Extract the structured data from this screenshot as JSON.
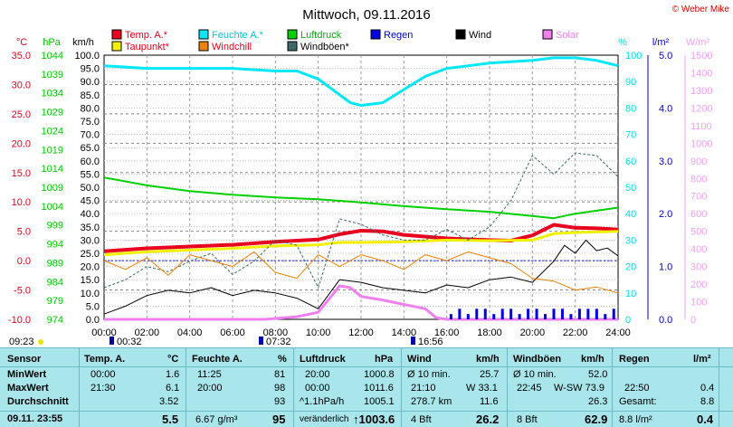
{
  "chart_data": {
    "type": "line",
    "title": "Mittwoch, 09.11.2016",
    "xlabel": "",
    "x_ticks": [
      "00:00",
      "02:00",
      "04:00",
      "06:00",
      "08:00",
      "10:00",
      "12:00",
      "14:00",
      "16:00",
      "18:00",
      "20:00",
      "22:00",
      "24:00"
    ],
    "axes": {
      "temp": {
        "unit": "°C",
        "min": -10,
        "max": 35,
        "ticks": [
          "35.0",
          "30.0",
          "25.0",
          "20.0",
          "15.0",
          "10.0",
          "5.0",
          "0.0",
          "-5.0",
          "-10.0"
        ],
        "color": "#e8001e"
      },
      "pressure": {
        "unit": "hPa",
        "min": 974,
        "max": 1044,
        "ticks": [
          "1044",
          "1039",
          "1034",
          "1029",
          "1024",
          "1019",
          "1014",
          "1009",
          "1004",
          "999",
          "994",
          "989",
          "984",
          "979",
          "974"
        ],
        "color": "#00c800"
      },
      "wind": {
        "unit": "km/h",
        "min": 0,
        "max": 100,
        "ticks": [
          "100.0",
          "95.0",
          "90.0",
          "85.0",
          "80.0",
          "75.0",
          "70.0",
          "65.0",
          "60.0",
          "55.0",
          "50.0",
          "45.0",
          "40.0",
          "35.0",
          "30.0",
          "25.0",
          "20.0",
          "15.0",
          "10.0",
          "5.0",
          "0.0"
        ],
        "color": "#000000"
      },
      "humidity": {
        "unit": "%",
        "min": 0,
        "max": 100,
        "ticks": [
          "100",
          "90",
          "80",
          "70",
          "60",
          "50",
          "40",
          "30",
          "20",
          "10",
          "0"
        ],
        "color": "#00e0f0"
      },
      "rain": {
        "unit": "l/m²",
        "min": 0,
        "max": 5,
        "ticks": [
          "5.0",
          "4.0",
          "3.0",
          "2.0",
          "1.0",
          "0.0"
        ],
        "color": "#0000d0"
      },
      "solar": {
        "unit": "W/m²",
        "min": 0,
        "max": 1500,
        "ticks": [
          "1500",
          "1400",
          "1300",
          "1200",
          "1100",
          "1000",
          "900",
          "800",
          "700",
          "600",
          "500",
          "400",
          "300",
          "200",
          "100",
          "0"
        ],
        "color": "#f0a0f0"
      }
    },
    "legend": [
      {
        "name": "Temp. A.*",
        "color": "#e8001e"
      },
      {
        "name": "Feuchte A.*",
        "color": "#00e8f8"
      },
      {
        "name": "Luftdruck",
        "color": "#00d000"
      },
      {
        "name": "Regen",
        "color": "#0000e0"
      },
      {
        "name": "Wind",
        "color": "#000000"
      },
      {
        "name": "Solar",
        "color": "#f080f0"
      },
      {
        "name": "Taupunkt*",
        "color": "#f0f000"
      },
      {
        "name": "Windchill",
        "color": "#f08000"
      },
      {
        "name": "Windböen*",
        "color": "#3c6a6a"
      }
    ],
    "series": [
      {
        "name": "Temp. A.*",
        "axis": "temp",
        "x": [
          0,
          2,
          4,
          6,
          8,
          10,
          11,
          12,
          13,
          14,
          16,
          18,
          19,
          20,
          21,
          22,
          23,
          24
        ],
        "y": [
          1.6,
          2.1,
          2.4,
          2.7,
          3.2,
          3.6,
          4.5,
          5.1,
          5.0,
          4.4,
          3.8,
          3.5,
          3.4,
          4.3,
          6.1,
          5.6,
          5.5,
          5.3
        ]
      },
      {
        "name": "Taupunkt*",
        "axis": "temp",
        "x": [
          0,
          2,
          4,
          6,
          8,
          10,
          11,
          12,
          14,
          16,
          18,
          20,
          21,
          22,
          24
        ],
        "y": [
          1.0,
          1.5,
          1.8,
          2.1,
          2.5,
          2.7,
          3.1,
          3.1,
          3.2,
          3.5,
          3.4,
          3.5,
          4.6,
          4.8,
          5.0
        ]
      },
      {
        "name": "Feuchte A.*",
        "axis": "humidity",
        "x": [
          0,
          2,
          4,
          6,
          8,
          9,
          10,
          11,
          11.5,
          12,
          13,
          14,
          15,
          16,
          18,
          20,
          21,
          22,
          23,
          24
        ],
        "y": [
          96,
          95,
          95,
          95,
          94,
          94,
          91,
          85,
          82,
          81,
          82,
          87,
          92,
          95,
          97,
          98,
          99,
          99,
          98,
          96
        ]
      },
      {
        "name": "Luftdruck",
        "axis": "pressure",
        "x": [
          0,
          2,
          4,
          6,
          8,
          10,
          12,
          14,
          16,
          18,
          20,
          21,
          22,
          23,
          24
        ],
        "y": [
          1011.6,
          1009.5,
          1008.0,
          1007.0,
          1006.3,
          1005.8,
          1005.0,
          1004.0,
          1003.2,
          1002.5,
          1001.4,
          1000.8,
          1002.0,
          1002.8,
          1003.6
        ]
      },
      {
        "name": "Wind",
        "axis": "wind",
        "x": [
          0,
          1,
          2,
          3,
          4,
          5,
          6,
          7,
          8,
          9,
          10,
          11,
          12,
          13,
          14,
          15,
          16,
          17,
          18,
          19,
          20,
          21,
          21.5,
          22,
          22.5,
          23,
          23.5,
          24
        ],
        "y": [
          2,
          5,
          9,
          11,
          10,
          12,
          9,
          11,
          10,
          8,
          4,
          15,
          14,
          12,
          11,
          10,
          13,
          12,
          15,
          16,
          14,
          22,
          28,
          25,
          30,
          26,
          27,
          24
        ]
      },
      {
        "name": "Windböen*",
        "axis": "wind",
        "x": [
          0,
          1,
          2,
          3,
          4,
          5,
          6,
          7,
          8,
          9,
          10,
          11,
          12,
          13,
          14,
          15,
          16,
          17,
          18,
          19,
          20,
          21,
          22,
          23,
          24
        ],
        "y": [
          12,
          15,
          20,
          18,
          22,
          25,
          17,
          22,
          30,
          28,
          12,
          38,
          36,
          32,
          30,
          30,
          34,
          30,
          35,
          45,
          62,
          55,
          63,
          62,
          54
        ]
      },
      {
        "name": "Windchill",
        "axis": "temp",
        "x": [
          0,
          1,
          2,
          3,
          4,
          5,
          6,
          7,
          8,
          9,
          10,
          11,
          12,
          13,
          14,
          15,
          16,
          17,
          18,
          19,
          20,
          21,
          22,
          23,
          24
        ],
        "y": [
          0,
          -1.5,
          0.5,
          -2.5,
          1,
          0,
          -1,
          1.5,
          -2,
          -3,
          1,
          -1,
          1,
          0,
          -1.5,
          1,
          0,
          1.5,
          0.5,
          -0.5,
          -3,
          -3.5,
          -5,
          -4.5,
          -5.5
        ]
      },
      {
        "name": "Solar",
        "axis": "solar",
        "x": [
          0,
          7.5,
          8,
          9,
          10,
          11,
          11.5,
          12,
          13,
          14,
          15,
          15.5,
          16,
          24
        ],
        "y": [
          0,
          0,
          5,
          15,
          40,
          190,
          180,
          130,
          110,
          85,
          60,
          10,
          0,
          0
        ]
      },
      {
        "name": "Regen",
        "axis": "rain",
        "type": "bar",
        "x": [
          16.2,
          16.6,
          17,
          17.4,
          17.8,
          18.2,
          18.6,
          19,
          19.4,
          19.8,
          20.2,
          20.6,
          21,
          21.4,
          21.8,
          22.2,
          22.6,
          23,
          23.4,
          23.8
        ],
        "y": [
          0.1,
          0.2,
          0.1,
          0.2,
          0.2,
          0.1,
          0.2,
          0.2,
          0.1,
          0.2,
          0.2,
          0.1,
          0.2,
          0.2,
          0.1,
          0.2,
          0.2,
          0.2,
          0.1,
          0.2
        ]
      }
    ],
    "grid": true,
    "footer_left": "09:23",
    "sun_markers": [
      "00:32",
      "07:32",
      "16:56"
    ]
  },
  "brand": "© Weber Mike",
  "table": {
    "rows": [
      "Sensor",
      "MinWert",
      "MaxWert",
      "Durchschnitt",
      "09.11.  23:55"
    ],
    "temp": {
      "head": "Temp. A.",
      "unit": "°C",
      "min_t": "00:00",
      "min_v": "1.6",
      "max_t": "21:30",
      "max_v": "6.1",
      "avg": "3.52",
      "cur": "5.5"
    },
    "hum": {
      "head": "Feuchte A.",
      "unit": "%",
      "min_t": "11:25",
      "min_v": "81",
      "max_t": "20:00",
      "max_v": "98",
      "avg": "93",
      "extra": "6.67 g/m³",
      "cur": "95"
    },
    "press": {
      "head": "Luftdruck",
      "unit": "hPa",
      "min_t": "20:00",
      "min_v": "1000.8",
      "max_t": "00:00",
      "max_v": "1011.6",
      "trend": "^1.1hPa/h",
      "avg": "1005.1",
      "state": "veränderlich",
      "cur": "1003.6"
    },
    "wind": {
      "head": "Wind",
      "unit": "km/h",
      "r1l": "Ø 10 min.",
      "r1v": "25.7",
      "r2l": "21:10",
      "r2v": "W 33.1",
      "r3l": "278.7 km",
      "r3v": "11.6",
      "r4l": "4 Bft",
      "cur": "26.2"
    },
    "gust": {
      "head": "Windböen",
      "unit": "km/h",
      "r1l": "Ø 10 min.",
      "r1v": "52.0",
      "r2l": "22:45",
      "r2v": "W-SW 73.9",
      "r3v": "26.3",
      "r4l": "8 Bft",
      "cur": "62.9"
    },
    "rain": {
      "head": "Regen",
      "unit": "l/m²",
      "r2l": "22:50",
      "r2v": "0.4",
      "r3l": "Gesamt:",
      "r3v": "8.8",
      "r4l": "8.8 l/m²",
      "cur": "0.4"
    }
  }
}
